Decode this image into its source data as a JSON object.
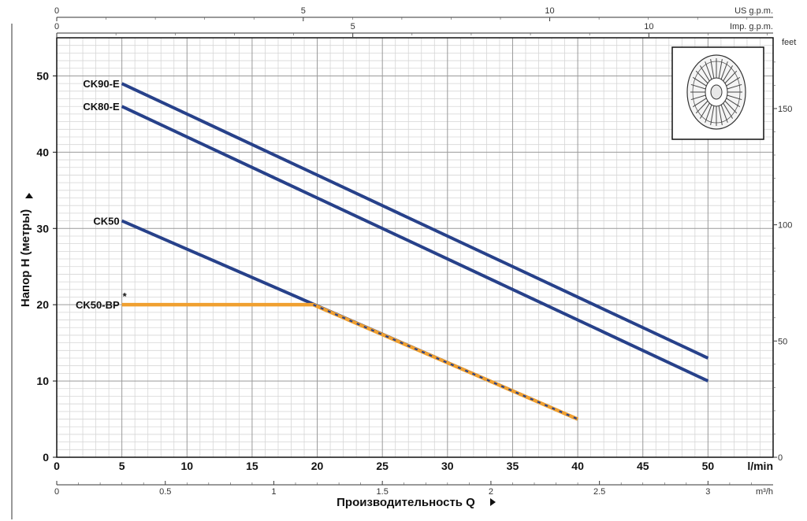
{
  "chart_data": {
    "type": "line",
    "ylabel": "Напор H (метры)",
    "xlabel": "Производительность Q",
    "x_unit": "l/min",
    "x_m3h_unit": "m³/h",
    "top1_unit": "US g.p.m.",
    "top2_unit": "Imp. g.p.m.",
    "right_unit": "feet",
    "xlim": [
      0,
      55
    ],
    "ylim": [
      0,
      55
    ],
    "x_ticks": [
      0,
      5,
      10,
      15,
      20,
      25,
      30,
      35,
      40,
      45,
      50
    ],
    "y_ticks": [
      0,
      10,
      20,
      30,
      40,
      50
    ],
    "m3h_ticks": [
      "0",
      "0.5",
      "1",
      "1.5",
      "2",
      "2.5",
      "3"
    ],
    "usgpm_ticks": [
      "0",
      "5",
      "10"
    ],
    "impgpm_ticks": [
      "0",
      "5",
      "10"
    ],
    "feet_ticks": [
      "0",
      "50",
      "100",
      "150"
    ],
    "series": [
      {
        "name": "CK90-E",
        "color": "#27418a",
        "points": [
          [
            5,
            49
          ],
          [
            50,
            13
          ]
        ]
      },
      {
        "name": "CK80-E",
        "color": "#27418a",
        "points": [
          [
            5,
            46
          ],
          [
            50,
            10
          ]
        ]
      },
      {
        "name": "CK50",
        "color": "#27418a",
        "points": [
          [
            5,
            31
          ],
          [
            40,
            5
          ]
        ]
      },
      {
        "name": "CK50-BP",
        "marker": "*",
        "color": "#f0a030",
        "points": [
          [
            5,
            20
          ],
          [
            19.7,
            20
          ],
          [
            40,
            5
          ]
        ]
      }
    ],
    "grid": true
  }
}
